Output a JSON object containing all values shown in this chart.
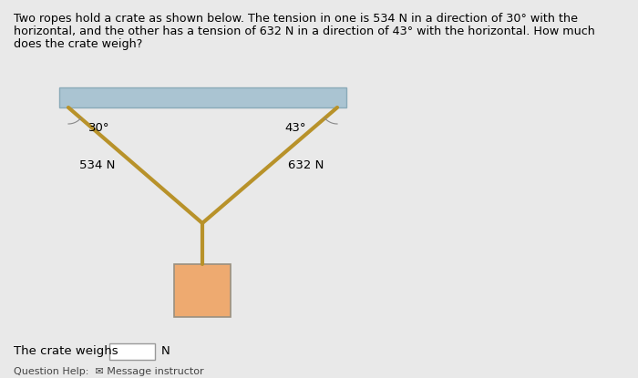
{
  "bg_color": "#e9e9e9",
  "rope_color": "#b8922a",
  "ceiling_color": "#aac4d2",
  "ceiling_edge_color": "#8aaab8",
  "crate_fill": "#eeaa70",
  "crate_edge": "#999080",
  "tension_left": "534 N",
  "tension_right": "632 N",
  "rope_lw": 3.0,
  "title_fontsize": 9.2,
  "label_fontsize": 9.5,
  "title_line1": "Two ropes hold a crate as shown below. The tension in one is 534 N in a direction of 30° with the",
  "title_line2": "horizontal, and the other has a tension of 632 N in a direction of 43° with the horizontal. How much",
  "title_line3": "does the crate weigh?",
  "answer_label": "The crate weighs",
  "answer_unit": "N",
  "footer_text": "Question Help:  ✉ Message instructor"
}
